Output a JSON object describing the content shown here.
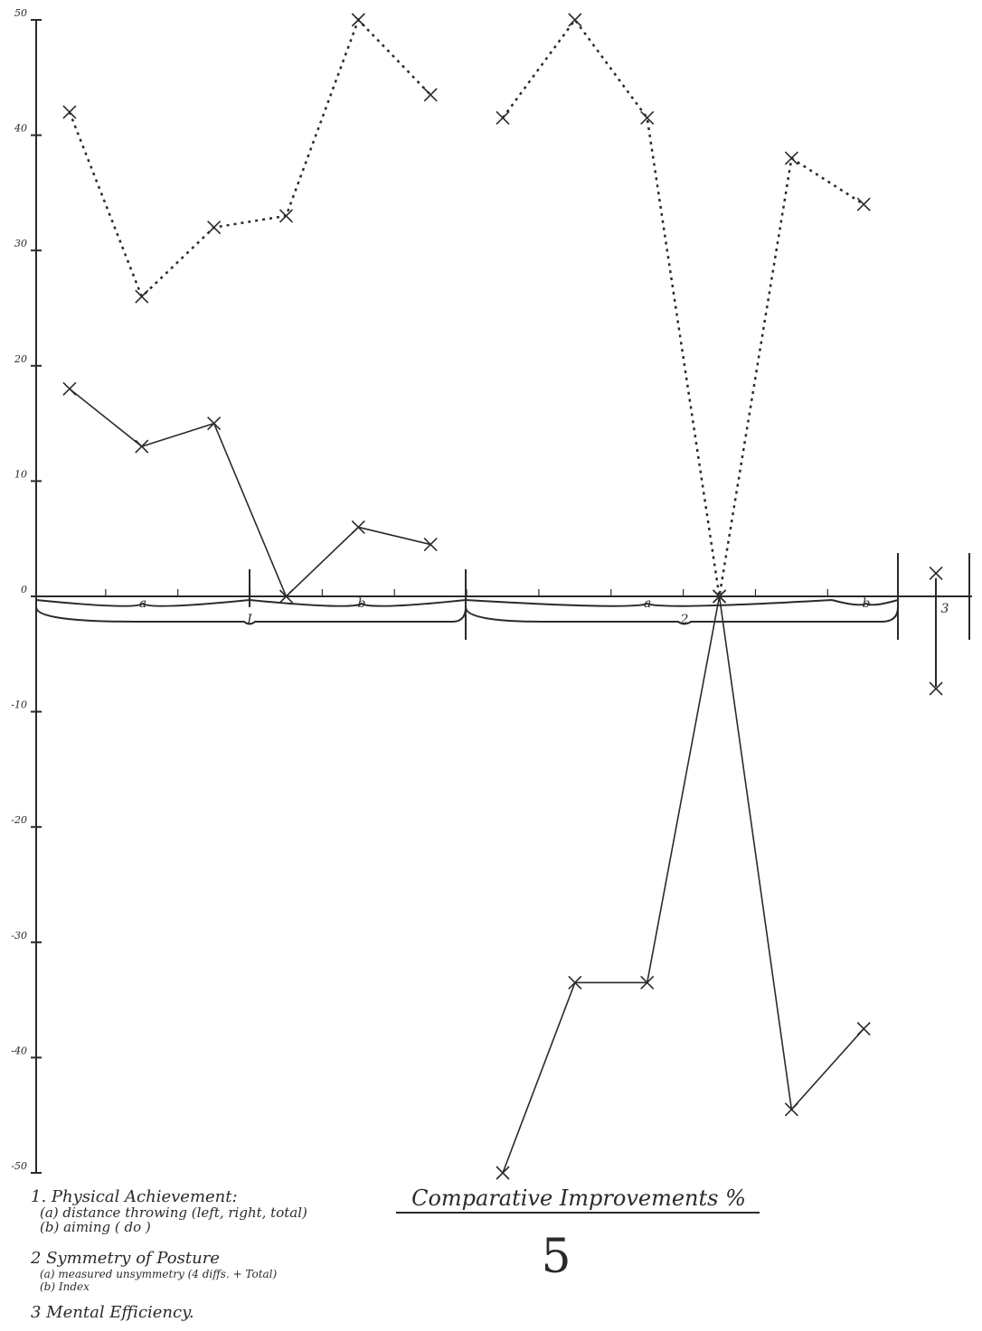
{
  "chart_data": {
    "type": "line",
    "title": "Comparative Improvements %",
    "subtitle": "5",
    "xlim": [
      0.5,
      13.5
    ],
    "ylim": [
      -50,
      50
    ],
    "yticks": [
      -50,
      -40,
      -30,
      -20,
      -10,
      0,
      10,
      20,
      30,
      40,
      50
    ],
    "series": [
      {
        "x": [
          1,
          2,
          3,
          4,
          5,
          6
        ],
        "values": [
          42,
          26,
          32,
          33,
          50,
          43.5
        ],
        "color": "#2a2a2a",
        "style": "dashed"
      },
      {
        "x": [
          7,
          8,
          9,
          10,
          11,
          12
        ],
        "values": [
          41.5,
          50,
          41.5,
          0,
          38,
          34
        ],
        "color": "#2a2a2a",
        "style": "dashed"
      },
      {
        "x": [
          13
        ],
        "values": [
          2
        ],
        "color": "#2a2a2a",
        "style": "dashed"
      },
      {
        "x": [
          1,
          2,
          3,
          4,
          5,
          6
        ],
        "values": [
          18,
          13,
          15,
          0,
          6,
          4.5
        ],
        "color": "#2a2a2a",
        "style": "solid"
      },
      {
        "x": [
          7,
          8,
          9,
          10,
          11,
          12
        ],
        "values": [
          -50,
          -33.5,
          -33.5,
          0,
          -44.5,
          -37.5
        ],
        "color": "#2a2a2a",
        "style": "solid"
      },
      {
        "x": [
          13
        ],
        "values": [
          -8
        ],
        "color": "#2a2a2a",
        "style": "solid"
      }
    ],
    "annotations": [
      "a",
      "b",
      "I",
      "a",
      "2",
      "b",
      "3"
    ],
    "notes": [
      "1. Physical Achievement:",
      "(a) distance throwing (left, right, total)",
      "(b) aiming ( do )",
      "2 Symmetry of Posture",
      "(a) measured unsymmetry (4 diffs. + Total)",
      "(b) Index",
      "3 Mental Efficiency."
    ]
  }
}
